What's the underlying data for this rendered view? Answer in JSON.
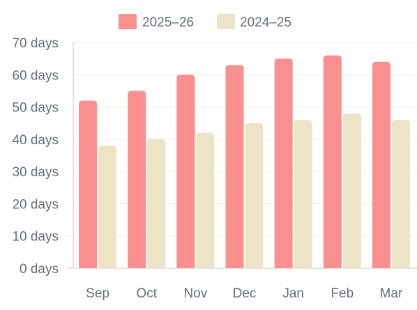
{
  "chart_data": {
    "type": "bar",
    "title": "",
    "xlabel": "",
    "ylabel": "",
    "categories": [
      "Sep",
      "Oct",
      "Nov",
      "Dec",
      "Jan",
      "Feb",
      "Mar"
    ],
    "series": [
      {
        "name": "2025–26",
        "color": "#f98f8f",
        "values": [
          52,
          55,
          60,
          63,
          65,
          66,
          64
        ]
      },
      {
        "name": "2024–25",
        "color": "#ede3c6",
        "values": [
          38,
          40,
          42,
          45,
          46,
          48,
          46
        ]
      }
    ],
    "ylim": [
      0,
      70
    ],
    "y_ticks": [
      0,
      10,
      20,
      30,
      40,
      50,
      60,
      70
    ],
    "y_tick_labels": [
      "0 days",
      "10 days",
      "20 days",
      "30 days",
      "40 days",
      "50 days",
      "60 days",
      "70 days"
    ],
    "grid": true,
    "legend_position": "top-center"
  }
}
